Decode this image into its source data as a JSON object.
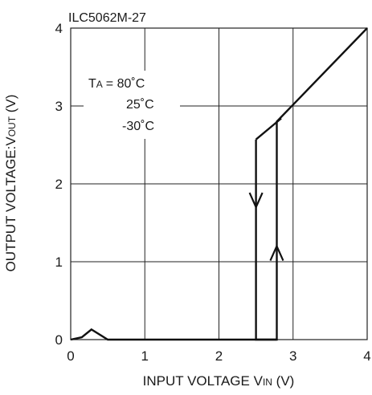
{
  "chart_data": {
    "type": "line",
    "title": "ILC5062M-27",
    "xlabel": {
      "main": "INPUT VOLTAGE V",
      "sub": "IN",
      "unit": " (V)"
    },
    "ylabel": {
      "main": "OUTPUT VOLTAGE:V",
      "sub": "OUT",
      "unit": " (V)"
    },
    "xlim": [
      0,
      4
    ],
    "ylim": [
      0,
      4
    ],
    "xticks": [
      "0",
      "1",
      "2",
      "3",
      "4"
    ],
    "yticks": [
      "0",
      "1",
      "2",
      "3",
      "4"
    ],
    "grid": true,
    "legend": {
      "position": "top-left",
      "label_main": "T",
      "label_sub": "A",
      "entries": [
        "= 80˚C",
        "25˚C",
        "-30˚C"
      ]
    },
    "series": [
      {
        "x": [
          0,
          0.15,
          0.28,
          0.5,
          2.78,
          2.78,
          4.0
        ],
        "y": [
          0,
          0.03,
          0.13,
          0,
          0,
          2.8,
          4.0
        ]
      },
      {
        "x": [
          2.78,
          2.5,
          2.5
        ],
        "y": [
          0,
          0,
          2.57
        ]
      },
      {
        "x": [
          2.5,
          2.84
        ],
        "y": [
          2.57,
          2.84
        ]
      }
    ],
    "annotations": [
      {
        "type": "arrow-down",
        "x": 2.5,
        "y": 1.7
      },
      {
        "type": "arrow-up",
        "x": 2.78,
        "y": 1.2
      }
    ]
  }
}
